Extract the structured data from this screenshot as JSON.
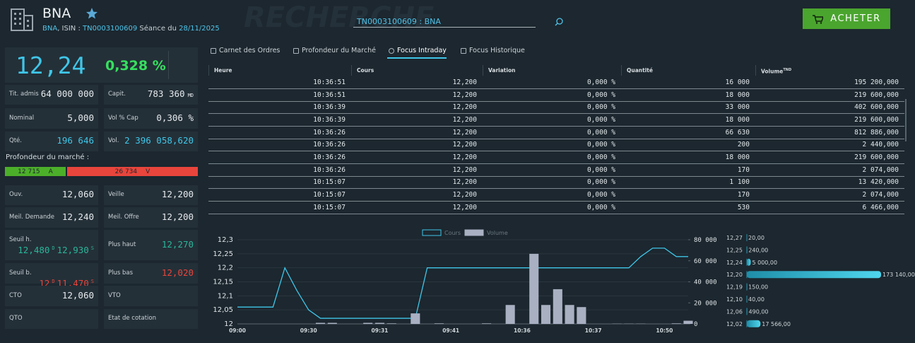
{
  "header": {
    "title": "BNA",
    "ticker": "BNA",
    "isin_label": ", ISIN :",
    "isin": "TN0003100609",
    "session_label": "Séance du",
    "date": "28/11/2025",
    "watermark": "RECHERCHE",
    "search": "TN0003100609 : BNA",
    "buy": "ACHETER"
  },
  "quote": {
    "price": "12,24",
    "change": "0,328 %"
  },
  "stats": [
    {
      "label": "Tit. admis",
      "value": "64 000 000"
    },
    {
      "label": "Capit.",
      "value": "783 360",
      "unit": "MD"
    },
    {
      "label": "Nominal",
      "value": "5,000"
    },
    {
      "label": "Vol % Cap",
      "value": "0,306 %"
    },
    {
      "label": "Qté.",
      "value": "196 646",
      "tone": "cyan"
    },
    {
      "label": "Vol.",
      "value": "2 396 058,620",
      "tone": "cyan"
    }
  ],
  "depth": {
    "title": "Profondeur du marché :",
    "bid": {
      "value": 12715,
      "label": "12 715",
      "side": "A",
      "color": "#4caf2a"
    },
    "ask": {
      "value": 26734,
      "label": "26 734",
      "side": "V",
      "color": "#e8453c"
    }
  },
  "prices": [
    {
      "label": "Ouv.",
      "value": "12,060"
    },
    {
      "label": "Veille",
      "value": "12,200"
    },
    {
      "label": "Meil. Demande",
      "value": "12,240"
    },
    {
      "label": "Meil. Offre",
      "value": "12,200"
    },
    {
      "label": "Seuil h.",
      "value": "12,480",
      "sup": "D",
      "value2": "12,930",
      "sup2": "S",
      "tone": "teal"
    },
    {
      "label": "Plus haut",
      "value": "12,270",
      "tone": "teal"
    },
    {
      "label": "Seuil b.",
      "value": "12",
      "sup": "D",
      "value2": "11,470",
      "sup2": "S",
      "tone": "red"
    },
    {
      "label": "Plus bas",
      "value": "12,020",
      "tone": "red"
    },
    {
      "label": "CTO",
      "value": "12,060"
    },
    {
      "label": "VTO"
    },
    {
      "label": "QTO"
    },
    {
      "label": "Etat de cotation"
    }
  ],
  "tabs": [
    "Carnet des Ordres",
    "Profondeur du Marché",
    "Focus Intraday",
    "Focus Historique"
  ],
  "active_tab": 2,
  "table": {
    "columns": [
      "Heure",
      "Cours",
      "Variation",
      "Quantité",
      "Volume"
    ],
    "volume_unit": "TND",
    "rows": [
      [
        "10:36:51",
        "12,200",
        "0,000 %",
        "16 000",
        "195 200,000"
      ],
      [
        "10:36:51",
        "12,200",
        "0,000 %",
        "18 000",
        "219 600,000"
      ],
      [
        "10:36:39",
        "12,200",
        "0,000 %",
        "33 000",
        "402 600,000"
      ],
      [
        "10:36:39",
        "12,200",
        "0,000 %",
        "18 000",
        "219 600,000"
      ],
      [
        "10:36:26",
        "12,200",
        "0,000 %",
        "66 630",
        "812 886,000"
      ],
      [
        "10:36:26",
        "12,200",
        "0,000 %",
        "200",
        "2 440,000"
      ],
      [
        "10:36:26",
        "12,200",
        "0,000 %",
        "18 000",
        "219 600,000"
      ],
      [
        "10:36:26",
        "12,200",
        "0,000 %",
        "170",
        "2 074,000"
      ],
      [
        "10:15:07",
        "12,200",
        "0,000 %",
        "1 100",
        "13 420,000"
      ],
      [
        "10:15:07",
        "12,200",
        "0,000 %",
        "170",
        "2 074,000"
      ],
      [
        "10:15:07",
        "12,200",
        "0,000 %",
        "530",
        "6 466,000"
      ]
    ]
  },
  "chart_data": [
    {
      "type": "combo",
      "categories": [
        "09:00",
        null,
        null,
        null,
        null,
        null,
        "09:30",
        null,
        null,
        null,
        null,
        null,
        "09:31",
        null,
        null,
        null,
        null,
        null,
        "09:41",
        null,
        null,
        null,
        null,
        null,
        "10:36",
        null,
        null,
        null,
        null,
        null,
        "10:37",
        null,
        null,
        null,
        null,
        null,
        "10:50",
        null,
        null
      ],
      "series": [
        {
          "name": "Cours",
          "type": "line",
          "color": "#3fc6e8",
          "values": [
            12.06,
            12.06,
            12.06,
            12.06,
            12.2,
            12.12,
            12.05,
            12.02,
            12.02,
            12.02,
            12.02,
            12.02,
            12.02,
            12.02,
            12.02,
            12.02,
            12.2,
            12.2,
            12.2,
            12.2,
            12.2,
            12.2,
            12.2,
            12.2,
            12.2,
            12.2,
            12.2,
            12.2,
            12.2,
            12.2,
            12.2,
            12.2,
            12.2,
            12.2,
            12.24,
            12.27,
            12.27,
            12.24,
            12.24
          ]
        },
        {
          "name": "Volume",
          "type": "bar",
          "axis": "y2",
          "color": "#a9b0c2",
          "values": [
            0,
            0,
            0,
            0,
            0,
            0,
            0,
            1000,
            1000,
            0,
            0,
            1000,
            1000,
            500,
            0,
            10000,
            0,
            500,
            0,
            0,
            0,
            500,
            0,
            18000,
            0,
            66630,
            18000,
            33000,
            18000,
            16000,
            0,
            0,
            200,
            200,
            200,
            0,
            0,
            500,
            3000
          ]
        }
      ],
      "ylim": [
        12,
        12.3
      ],
      "yticks": [
        {
          "value": 12,
          "label": "12"
        },
        {
          "value": 12.05,
          "label": "12,05"
        },
        {
          "value": 12.1,
          "label": "12,1"
        },
        {
          "value": 12.15,
          "label": "12,15"
        },
        {
          "value": 12.2,
          "label": "12,2"
        },
        {
          "value": 12.25,
          "label": "12,25"
        },
        {
          "value": 12.3,
          "label": "12,3"
        }
      ],
      "y2lim": [
        0,
        80000
      ],
      "y2ticks": [
        0,
        {
          "value": 20000,
          "label": "20 000"
        },
        {
          "value": 40000,
          "label": "40 000"
        },
        {
          "value": 60000,
          "label": "60 000"
        },
        {
          "value": 80000,
          "label": "80 000"
        }
      ],
      "grid": true
    },
    {
      "type": "bar",
      "orientation": "horizontal",
      "color": "#3fc6e8",
      "categories": [
        "12,27",
        "12,25",
        "12,24",
        "12,20",
        "12,19",
        "12,10",
        "12,06",
        "12,02"
      ],
      "values": [
        20,
        240,
        5000,
        173140,
        150,
        40,
        490,
        17566
      ],
      "value_labels": [
        "20,00",
        "240,00",
        "5 000,00",
        "173 140,00",
        "150,00",
        "40,00",
        "490,00",
        "17 566,00"
      ]
    }
  ]
}
